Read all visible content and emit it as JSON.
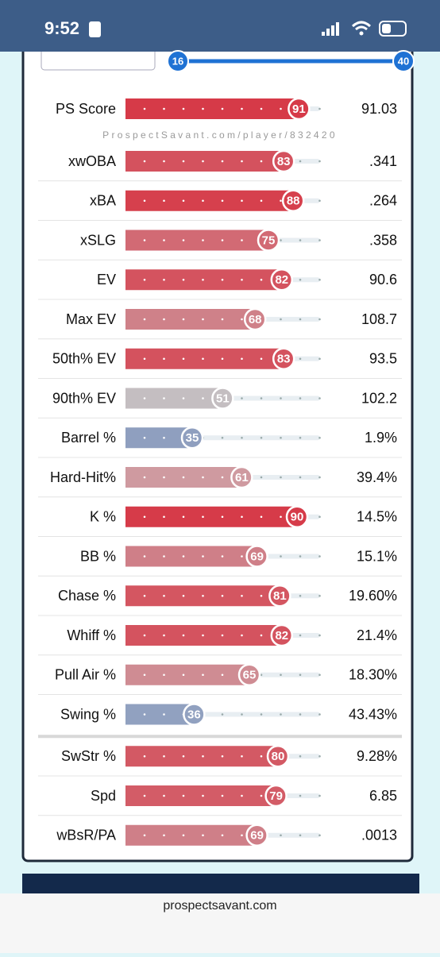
{
  "status_bar": {
    "time": "9:52"
  },
  "slider": {
    "min": 16,
    "max": 40
  },
  "watermark": "ProspectSavant.com/player/832420",
  "rows": [
    {
      "label": "PS Score",
      "percentile": 91,
      "value": "91.03",
      "color": "#d63a48"
    },
    {
      "label": "xwOBA",
      "percentile": 83,
      "value": ".341",
      "color": "#d4525e"
    },
    {
      "label": "xBA",
      "percentile": 88,
      "value": ".264",
      "color": "#d6404d"
    },
    {
      "label": "xSLG",
      "percentile": 75,
      "value": ".358",
      "color": "#d26a74"
    },
    {
      "label": "EV",
      "percentile": 82,
      "value": "90.6",
      "color": "#d4535f"
    },
    {
      "label": "Max EV",
      "percentile": 68,
      "value": "108.7",
      "color": "#cf8189"
    },
    {
      "label": "50th% EV",
      "percentile": 83,
      "value": "93.5",
      "color": "#d4525e"
    },
    {
      "label": "90th% EV",
      "percentile": 51,
      "value": "102.2",
      "color": "#c4bec1"
    },
    {
      "label": "Barrel %",
      "percentile": 35,
      "value": "1.9%",
      "color": "#8f9fbf"
    },
    {
      "label": "Hard-Hit%",
      "percentile": 61,
      "value": "39.4%",
      "color": "#cf9aa0"
    },
    {
      "label": "K %",
      "percentile": 90,
      "value": "14.5%",
      "color": "#d63b49"
    },
    {
      "label": "BB %",
      "percentile": 69,
      "value": "15.1%",
      "color": "#cf7f88"
    },
    {
      "label": "Chase %",
      "percentile": 81,
      "value": "19.60%",
      "color": "#d45661"
    },
    {
      "label": "Whiff %",
      "percentile": 82,
      "value": "21.4%",
      "color": "#d4535f"
    },
    {
      "label": "Pull Air %",
      "percentile": 65,
      "value": "18.30%",
      "color": "#cf8c93"
    },
    {
      "label": "Swing %",
      "percentile": 36,
      "value": "43.43%",
      "color": "#91a1c0"
    },
    {
      "label": "SwStr %",
      "percentile": 80,
      "value": "9.28%",
      "color": "#d35964"
    },
    {
      "label": "Spd",
      "percentile": 79,
      "value": "6.85",
      "color": "#d35c67"
    },
    {
      "label": "wBsR/PA",
      "percentile": 69,
      "value": ".0013",
      "color": "#cf7f88"
    }
  ],
  "footer": {
    "url": "prospectsavant.com"
  }
}
